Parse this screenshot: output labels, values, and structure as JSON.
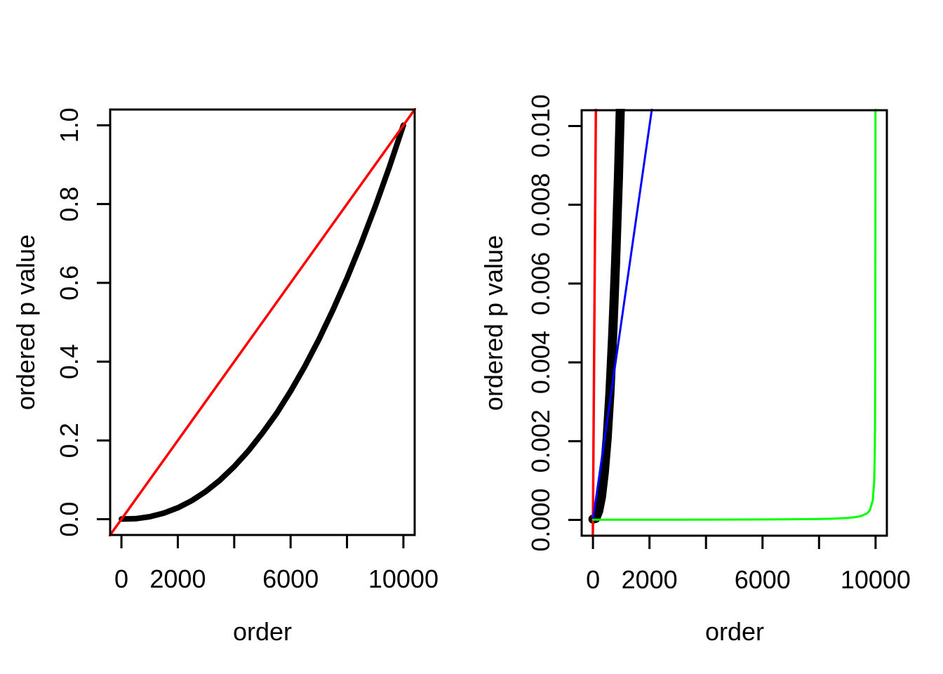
{
  "figure": {
    "background": "#FFFFFF",
    "description": "Two R base plots of ordered p values versus order"
  },
  "chart_data": [
    {
      "type": "line",
      "title": "",
      "xlabel": "order",
      "ylabel": "ordered p value",
      "xlim": [
        0,
        10000
      ],
      "ylim": [
        0,
        1
      ],
      "grid": false,
      "legend": "none",
      "xticks": [
        {
          "value": 0,
          "label": "0"
        },
        {
          "value": 2000,
          "label": "2000"
        },
        {
          "value": 4000,
          "label": ""
        },
        {
          "value": 6000,
          "label": "6000"
        },
        {
          "value": 8000,
          "label": ""
        },
        {
          "value": 10000,
          "label": "10000"
        }
      ],
      "yticks": [
        {
          "value": 0.0,
          "label": "0.0"
        },
        {
          "value": 0.2,
          "label": "0.2"
        },
        {
          "value": 0.4,
          "label": "0.4"
        },
        {
          "value": 0.6,
          "label": "0.6"
        },
        {
          "value": 0.8,
          "label": "0.8"
        },
        {
          "value": 1.0,
          "label": "1.0"
        }
      ],
      "series": [
        {
          "name": "black-ordered-p-curve",
          "color": "#000000",
          "width": 8,
          "points": [
            [
              0,
              0.0005
            ],
            [
              500,
              0.0014
            ],
            [
              1000,
              0.0063
            ],
            [
              1500,
              0.0154
            ],
            [
              2000,
              0.0289
            ],
            [
              2500,
              0.0474
            ],
            [
              3000,
              0.0708
            ],
            [
              3500,
              0.0995
            ],
            [
              4000,
              0.1337
            ],
            [
              4500,
              0.1734
            ],
            [
              5000,
              0.2188
            ],
            [
              5500,
              0.2684
            ],
            [
              6000,
              0.3251
            ],
            [
              6500,
              0.3876
            ],
            [
              7000,
              0.4562
            ],
            [
              7500,
              0.5311
            ],
            [
              8000,
              0.6121
            ],
            [
              8500,
              0.6994
            ],
            [
              9000,
              0.7931
            ],
            [
              9500,
              0.8933
            ],
            [
              10000,
              1.0
            ]
          ]
        },
        {
          "name": "red-diagonal-line",
          "color": "#FF0000",
          "width": 3.5,
          "points": [
            [
              -500,
              -0.05
            ],
            [
              10500,
              1.05
            ]
          ]
        }
      ]
    },
    {
      "type": "line",
      "title": "",
      "xlabel": "order",
      "ylabel": "ordered p value",
      "xlim": [
        0,
        10000
      ],
      "ylim": [
        0,
        0.01
      ],
      "grid": false,
      "legend": "none",
      "xticks": [
        {
          "value": 0,
          "label": "0"
        },
        {
          "value": 2000,
          "label": "2000"
        },
        {
          "value": 4000,
          "label": ""
        },
        {
          "value": 6000,
          "label": "6000"
        },
        {
          "value": 8000,
          "label": ""
        },
        {
          "value": 10000,
          "label": "10000"
        }
      ],
      "yticks": [
        {
          "value": 0.0,
          "label": "0.000"
        },
        {
          "value": 0.002,
          "label": "0.002"
        },
        {
          "value": 0.004,
          "label": "0.004"
        },
        {
          "value": 0.006,
          "label": "0.006"
        },
        {
          "value": 0.008,
          "label": "0.008"
        },
        {
          "value": 0.01,
          "label": "0.010"
        }
      ],
      "series": [
        {
          "name": "black-ordered-p-curve",
          "color": "#000000",
          "width": 13,
          "points": [
            [
              0,
              2e-05
            ],
            [
              100,
              4e-05
            ],
            [
              200,
              0.00022
            ],
            [
              300,
              0.00058
            ],
            [
              400,
              0.00119
            ],
            [
              500,
              0.00206
            ],
            [
              600,
              0.00323
            ],
            [
              700,
              0.00472
            ],
            [
              800,
              0.00651
            ],
            [
              900,
              0.00868
            ],
            [
              966,
              0.0104
            ],
            [
              1010,
              0.0112
            ]
          ]
        },
        {
          "name": "red-diagonal-line",
          "color": "#FF0000",
          "width": 3.5,
          "points": [
            [
              -10,
              -0.001
            ],
            [
              115,
              0.0115
            ]
          ]
        },
        {
          "name": "blue-line",
          "color": "#0000FF",
          "width": 3,
          "points": [
            [
              0,
              0
            ],
            [
              2200,
              0.011
            ]
          ]
        },
        {
          "name": "green-curve",
          "color": "#00FF00",
          "width": 3,
          "points": [
            [
              1,
              5e-06
            ],
            [
              1000,
              5.6e-06
            ],
            [
              2000,
              6.3e-06
            ],
            [
              3000,
              7.1e-06
            ],
            [
              4000,
              8.3e-06
            ],
            [
              5000,
              1e-05
            ],
            [
              6000,
              1.25e-05
            ],
            [
              7000,
              1.67e-05
            ],
            [
              8000,
              2.5e-05
            ],
            [
              8500,
              3.33e-05
            ],
            [
              9000,
              5e-05
            ],
            [
              9300,
              7.14e-05
            ],
            [
              9500,
              0.0001
            ],
            [
              9700,
              0.000166
            ],
            [
              9800,
              0.000249
            ],
            [
              9900,
              0.000495
            ],
            [
              9950,
              0.00098
            ],
            [
              9970,
              0.00161
            ],
            [
              9980,
              0.00238
            ],
            [
              9990,
              0.00455
            ],
            [
              9995,
              0.00833
            ],
            [
              9997,
              0.0125
            ]
          ]
        }
      ]
    }
  ]
}
